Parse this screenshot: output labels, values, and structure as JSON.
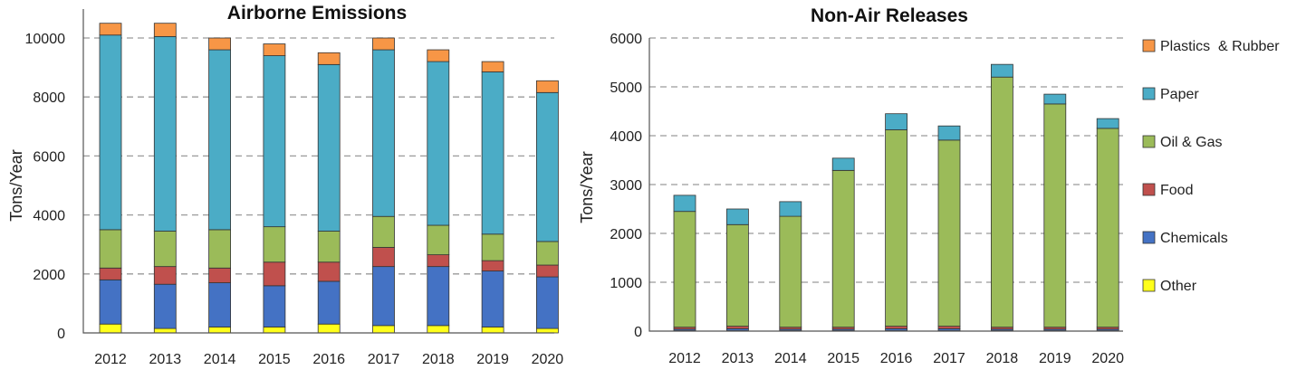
{
  "colors": {
    "Other": "#ffff1a",
    "Chemicals": "#4472c4",
    "Food": "#c0504d",
    "Oil & Gas": "#9bbb59",
    "Paper": "#4bacc6",
    "Plastics  & Rubber": "#f79646"
  },
  "chart_data": [
    {
      "type": "bar",
      "stacked": true,
      "title": "Airborne Emissions",
      "xlabel": "",
      "ylabel": "Tons/Year",
      "ylim": [
        0,
        10000
      ],
      "yticks": [
        0,
        2000,
        4000,
        6000,
        8000,
        10000
      ],
      "grid": true,
      "categories": [
        "2012",
        "2013",
        "2014",
        "2015",
        "2016",
        "2017",
        "2018",
        "2019",
        "2020"
      ],
      "series": [
        {
          "name": "Other",
          "values": [
            300,
            150,
            200,
            200,
            300,
            250,
            250,
            200,
            150
          ]
        },
        {
          "name": "Chemicals",
          "values": [
            1500,
            1500,
            1500,
            1400,
            1450,
            2000,
            2000,
            1900,
            1750
          ]
        },
        {
          "name": "Food",
          "values": [
            400,
            600,
            500,
            800,
            650,
            650,
            400,
            350,
            400
          ]
        },
        {
          "name": "Oil & Gas",
          "values": [
            1300,
            1200,
            1300,
            1200,
            1050,
            1050,
            1000,
            900,
            800
          ]
        },
        {
          "name": "Paper",
          "values": [
            6600,
            6600,
            6100,
            5800,
            5650,
            5650,
            5550,
            5500,
            5050
          ]
        },
        {
          "name": "Plastics  & Rubber",
          "values": [
            400,
            450,
            400,
            400,
            400,
            400,
            400,
            350,
            400
          ]
        }
      ]
    },
    {
      "type": "bar",
      "stacked": true,
      "title": "Non-Air Releases",
      "xlabel": "",
      "ylabel": "Tons/Year",
      "ylim": [
        0,
        6000
      ],
      "yticks": [
        0,
        1000,
        2000,
        3000,
        4000,
        5000,
        6000
      ],
      "grid": true,
      "legend_position": "right",
      "categories": [
        "2012",
        "2013",
        "2014",
        "2015",
        "2016",
        "2017",
        "2018",
        "2019",
        "2020"
      ],
      "series": [
        {
          "name": "Other",
          "values": [
            10,
            10,
            10,
            10,
            10,
            10,
            10,
            10,
            10
          ]
        },
        {
          "name": "Chemicals",
          "values": [
            30,
            40,
            30,
            30,
            40,
            40,
            30,
            30,
            30
          ]
        },
        {
          "name": "Food",
          "values": [
            40,
            50,
            40,
            40,
            50,
            50,
            40,
            40,
            40
          ]
        },
        {
          "name": "Oil & Gas",
          "values": [
            2370,
            2080,
            2270,
            3210,
            4020,
            3810,
            5120,
            4570,
            4070
          ]
        },
        {
          "name": "Paper",
          "values": [
            330,
            320,
            300,
            250,
            330,
            290,
            260,
            200,
            200
          ]
        },
        {
          "name": "Plastics  & Rubber",
          "values": [
            0,
            0,
            0,
            0,
            0,
            0,
            0,
            0,
            0
          ]
        }
      ],
      "legend": [
        "Plastics  & Rubber",
        "Paper",
        "Oil & Gas",
        "Food",
        "Chemicals",
        "Other"
      ]
    }
  ]
}
